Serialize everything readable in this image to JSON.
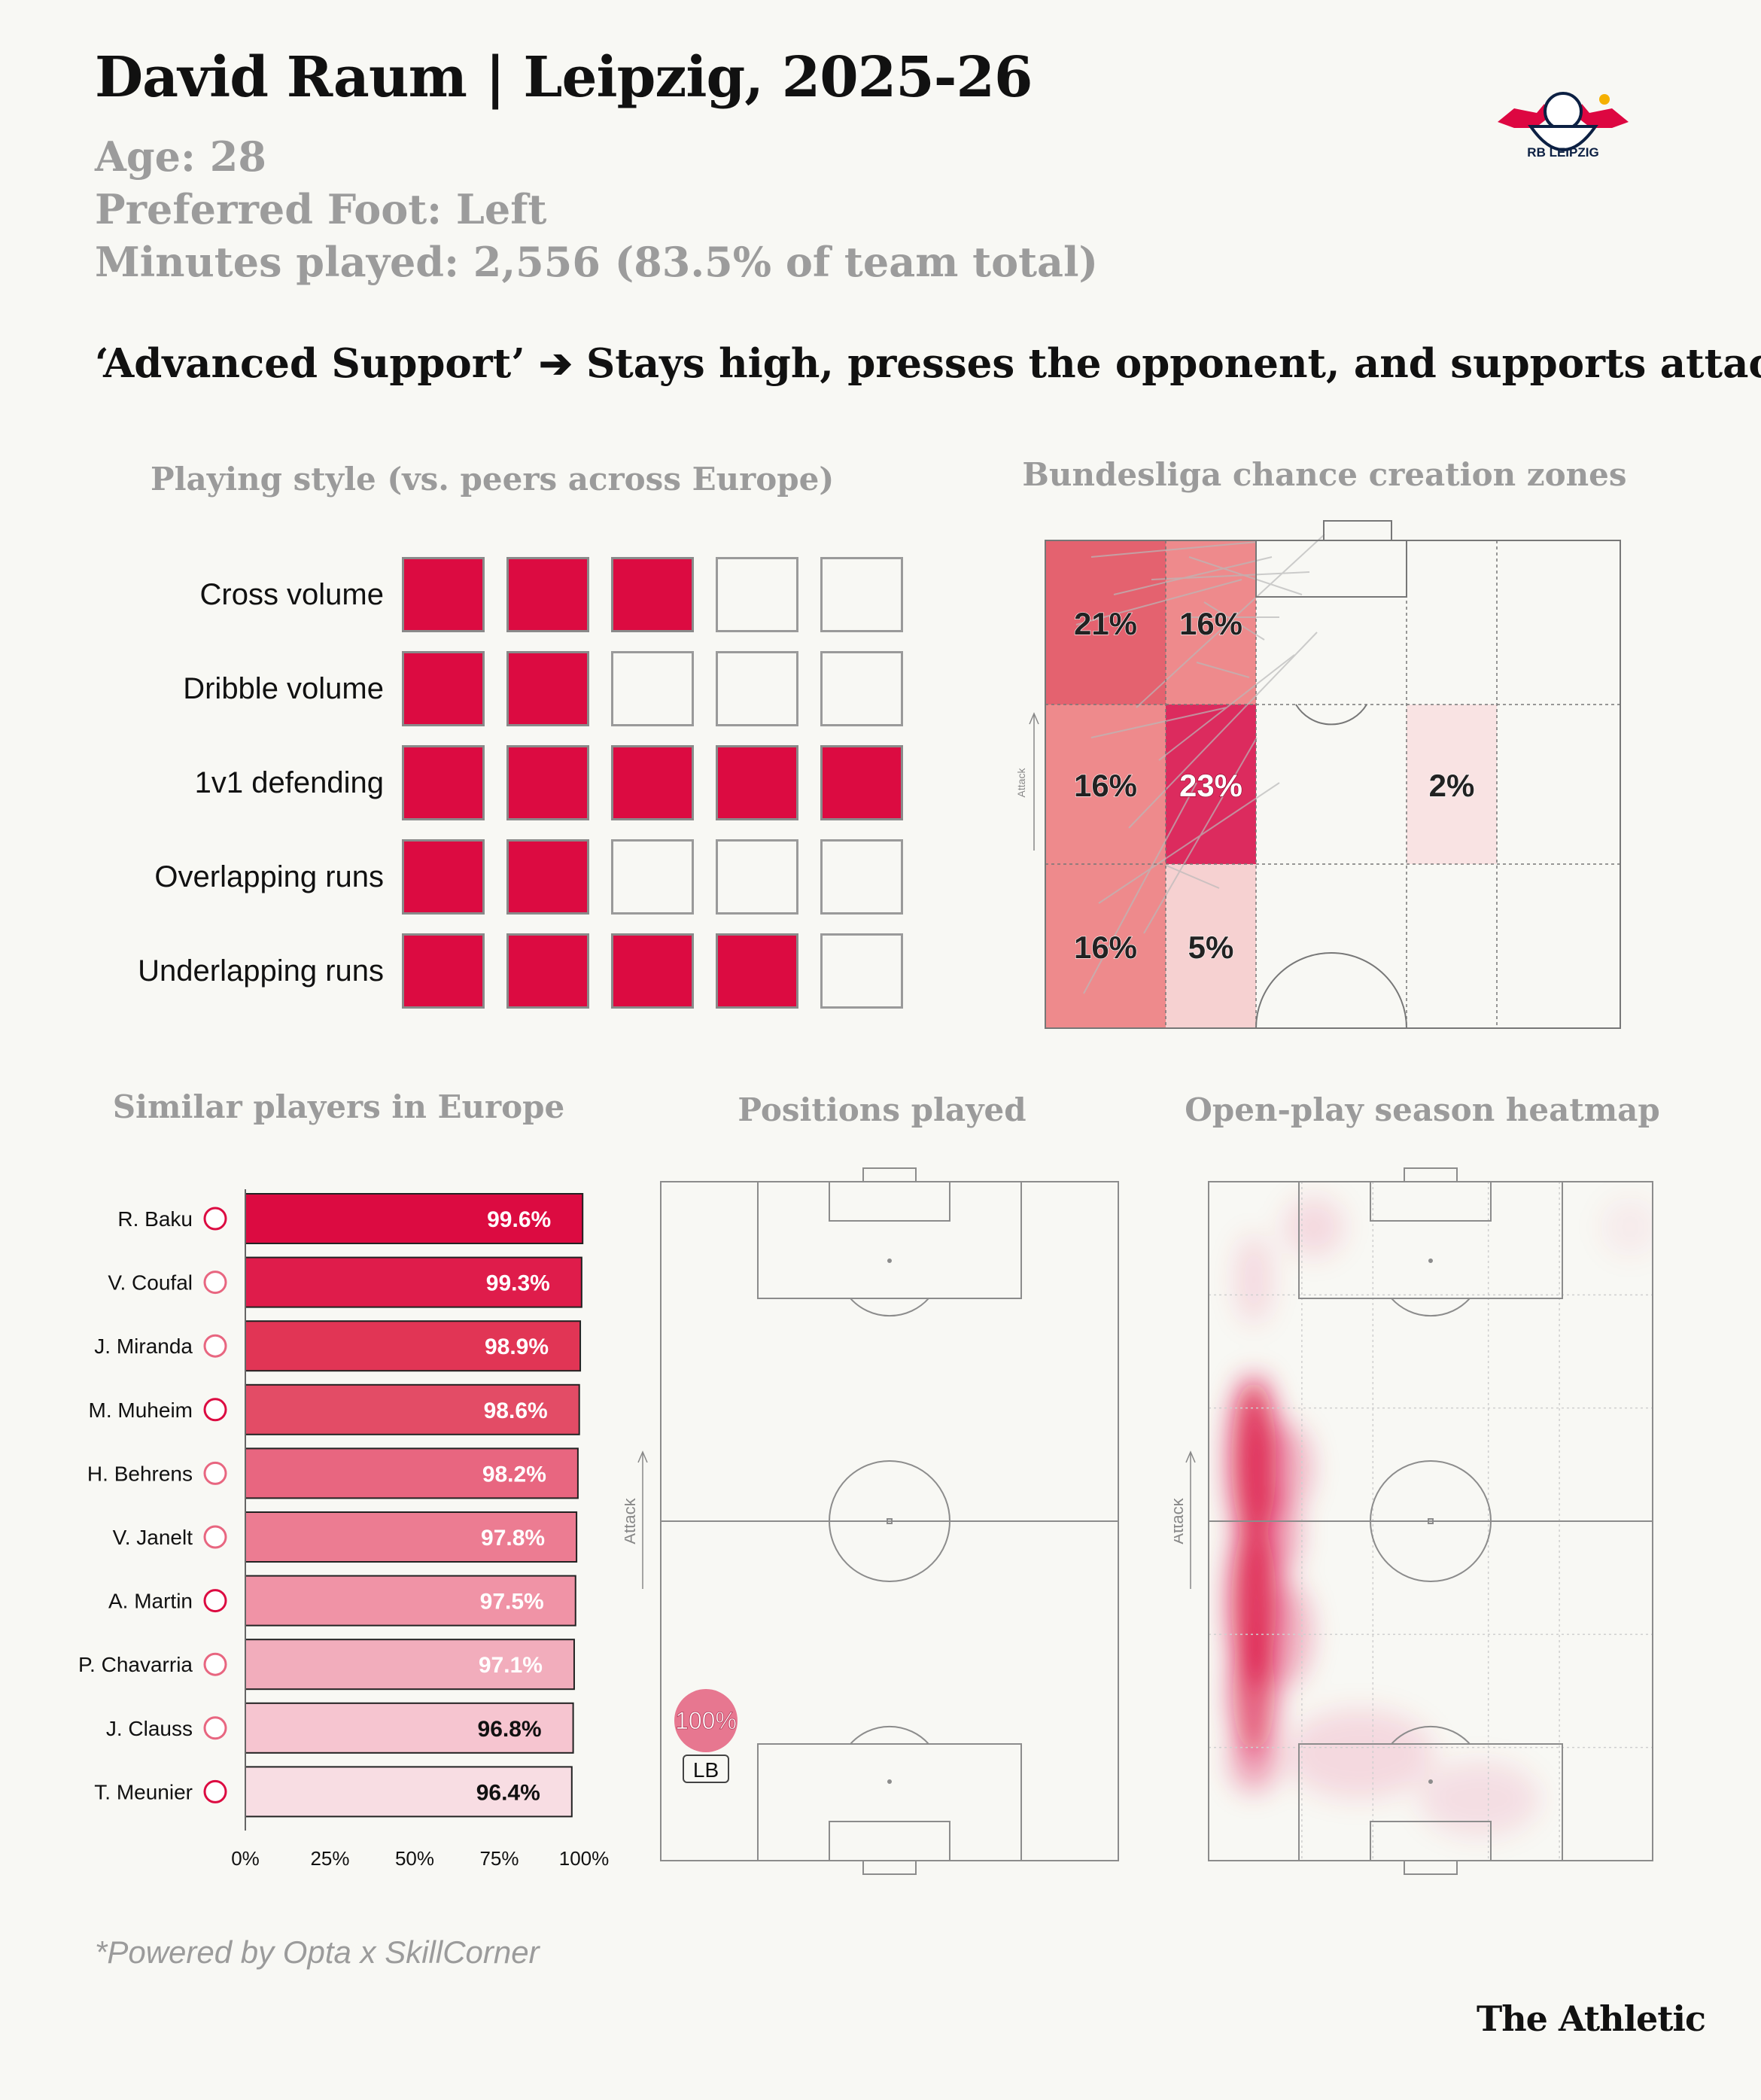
{
  "header": {
    "title": "David Raum | Leipzig, 2025-26",
    "age": "Age: 28",
    "foot": "Preferred Foot: Left",
    "minutes": "Minutes played: 2,556 (83.5% of team total)",
    "role": "‘Advanced Support’ ➔ Stays high, presses the opponent, and supports attack"
  },
  "club_logo": {
    "text": "RB LEIPZIG",
    "colors": {
      "red": "#dd0741",
      "navy": "#0c2043",
      "gold": "#f5b000"
    }
  },
  "sections": {
    "playing_style": "Playing style (vs. peers across Europe)",
    "chance_zones": "Bundesliga chance creation zones",
    "similar": "Similar players in Europe",
    "positions": "Positions played",
    "heatmap": "Open-play season heatmap"
  },
  "attack_label": "Attack",
  "colors": {
    "accent": "#dc0b41",
    "muted": "#9b9b9b",
    "background": "#f8f8f4"
  },
  "chart_data": [
    {
      "type": "table",
      "name": "playing_style",
      "rows": [
        {
          "label": "Cross volume",
          "value": 3,
          "max": 5
        },
        {
          "label": "Dribble volume",
          "value": 2,
          "max": 5
        },
        {
          "label": "1v1 defending",
          "value": 5,
          "max": 5
        },
        {
          "label": "Overlapping runs",
          "value": 2,
          "max": 5
        },
        {
          "label": "Underlapping runs",
          "value": 4,
          "max": 5
        }
      ]
    },
    {
      "type": "heatmap",
      "name": "chance_creation_zones",
      "zones": [
        {
          "col": 0,
          "row": 0,
          "label": "21%",
          "value": 21
        },
        {
          "col": 1,
          "row": 0,
          "label": "16%",
          "value": 16
        },
        {
          "col": 0,
          "row": 1,
          "label": "16%",
          "value": 16
        },
        {
          "col": 1,
          "row": 1,
          "label": "23%",
          "value": 23
        },
        {
          "col": 3,
          "row": 1,
          "label": "2%",
          "value": 2
        },
        {
          "col": 0,
          "row": 2,
          "label": "16%",
          "value": 16
        },
        {
          "col": 1,
          "row": 2,
          "label": "5%",
          "value": 5
        }
      ]
    },
    {
      "type": "bar",
      "name": "similar_players",
      "categories": [
        "R. Baku",
        "V. Coufal",
        "J. Miranda",
        "M. Muheim",
        "H. Behrens",
        "V. Janelt",
        "A. Martin",
        "P. Chavarria",
        "J. Clauss",
        "T. Meunier"
      ],
      "values": [
        99.6,
        99.3,
        98.9,
        98.6,
        98.2,
        97.8,
        97.5,
        97.1,
        96.8,
        96.4
      ],
      "labels": [
        "99.6%",
        "99.3%",
        "98.9%",
        "98.6%",
        "98.2%",
        "97.8%",
        "97.5%",
        "97.1%",
        "96.8%",
        "96.4%"
      ],
      "xticks": [
        "0%",
        "25%",
        "50%",
        "75%",
        "100%"
      ],
      "xlim": [
        0,
        100
      ]
    },
    {
      "type": "scatter",
      "name": "positions_played",
      "points": [
        {
          "position": "LB",
          "share": 100,
          "label": "100%"
        }
      ]
    },
    {
      "type": "heatmap",
      "name": "open_play_heatmap",
      "note": "Activity concentrated on the left flank, strongest in the middle third and own half"
    }
  ],
  "footer": {
    "source": "*Powered by Opta x SkillCorner",
    "brand": "The Athletic"
  }
}
